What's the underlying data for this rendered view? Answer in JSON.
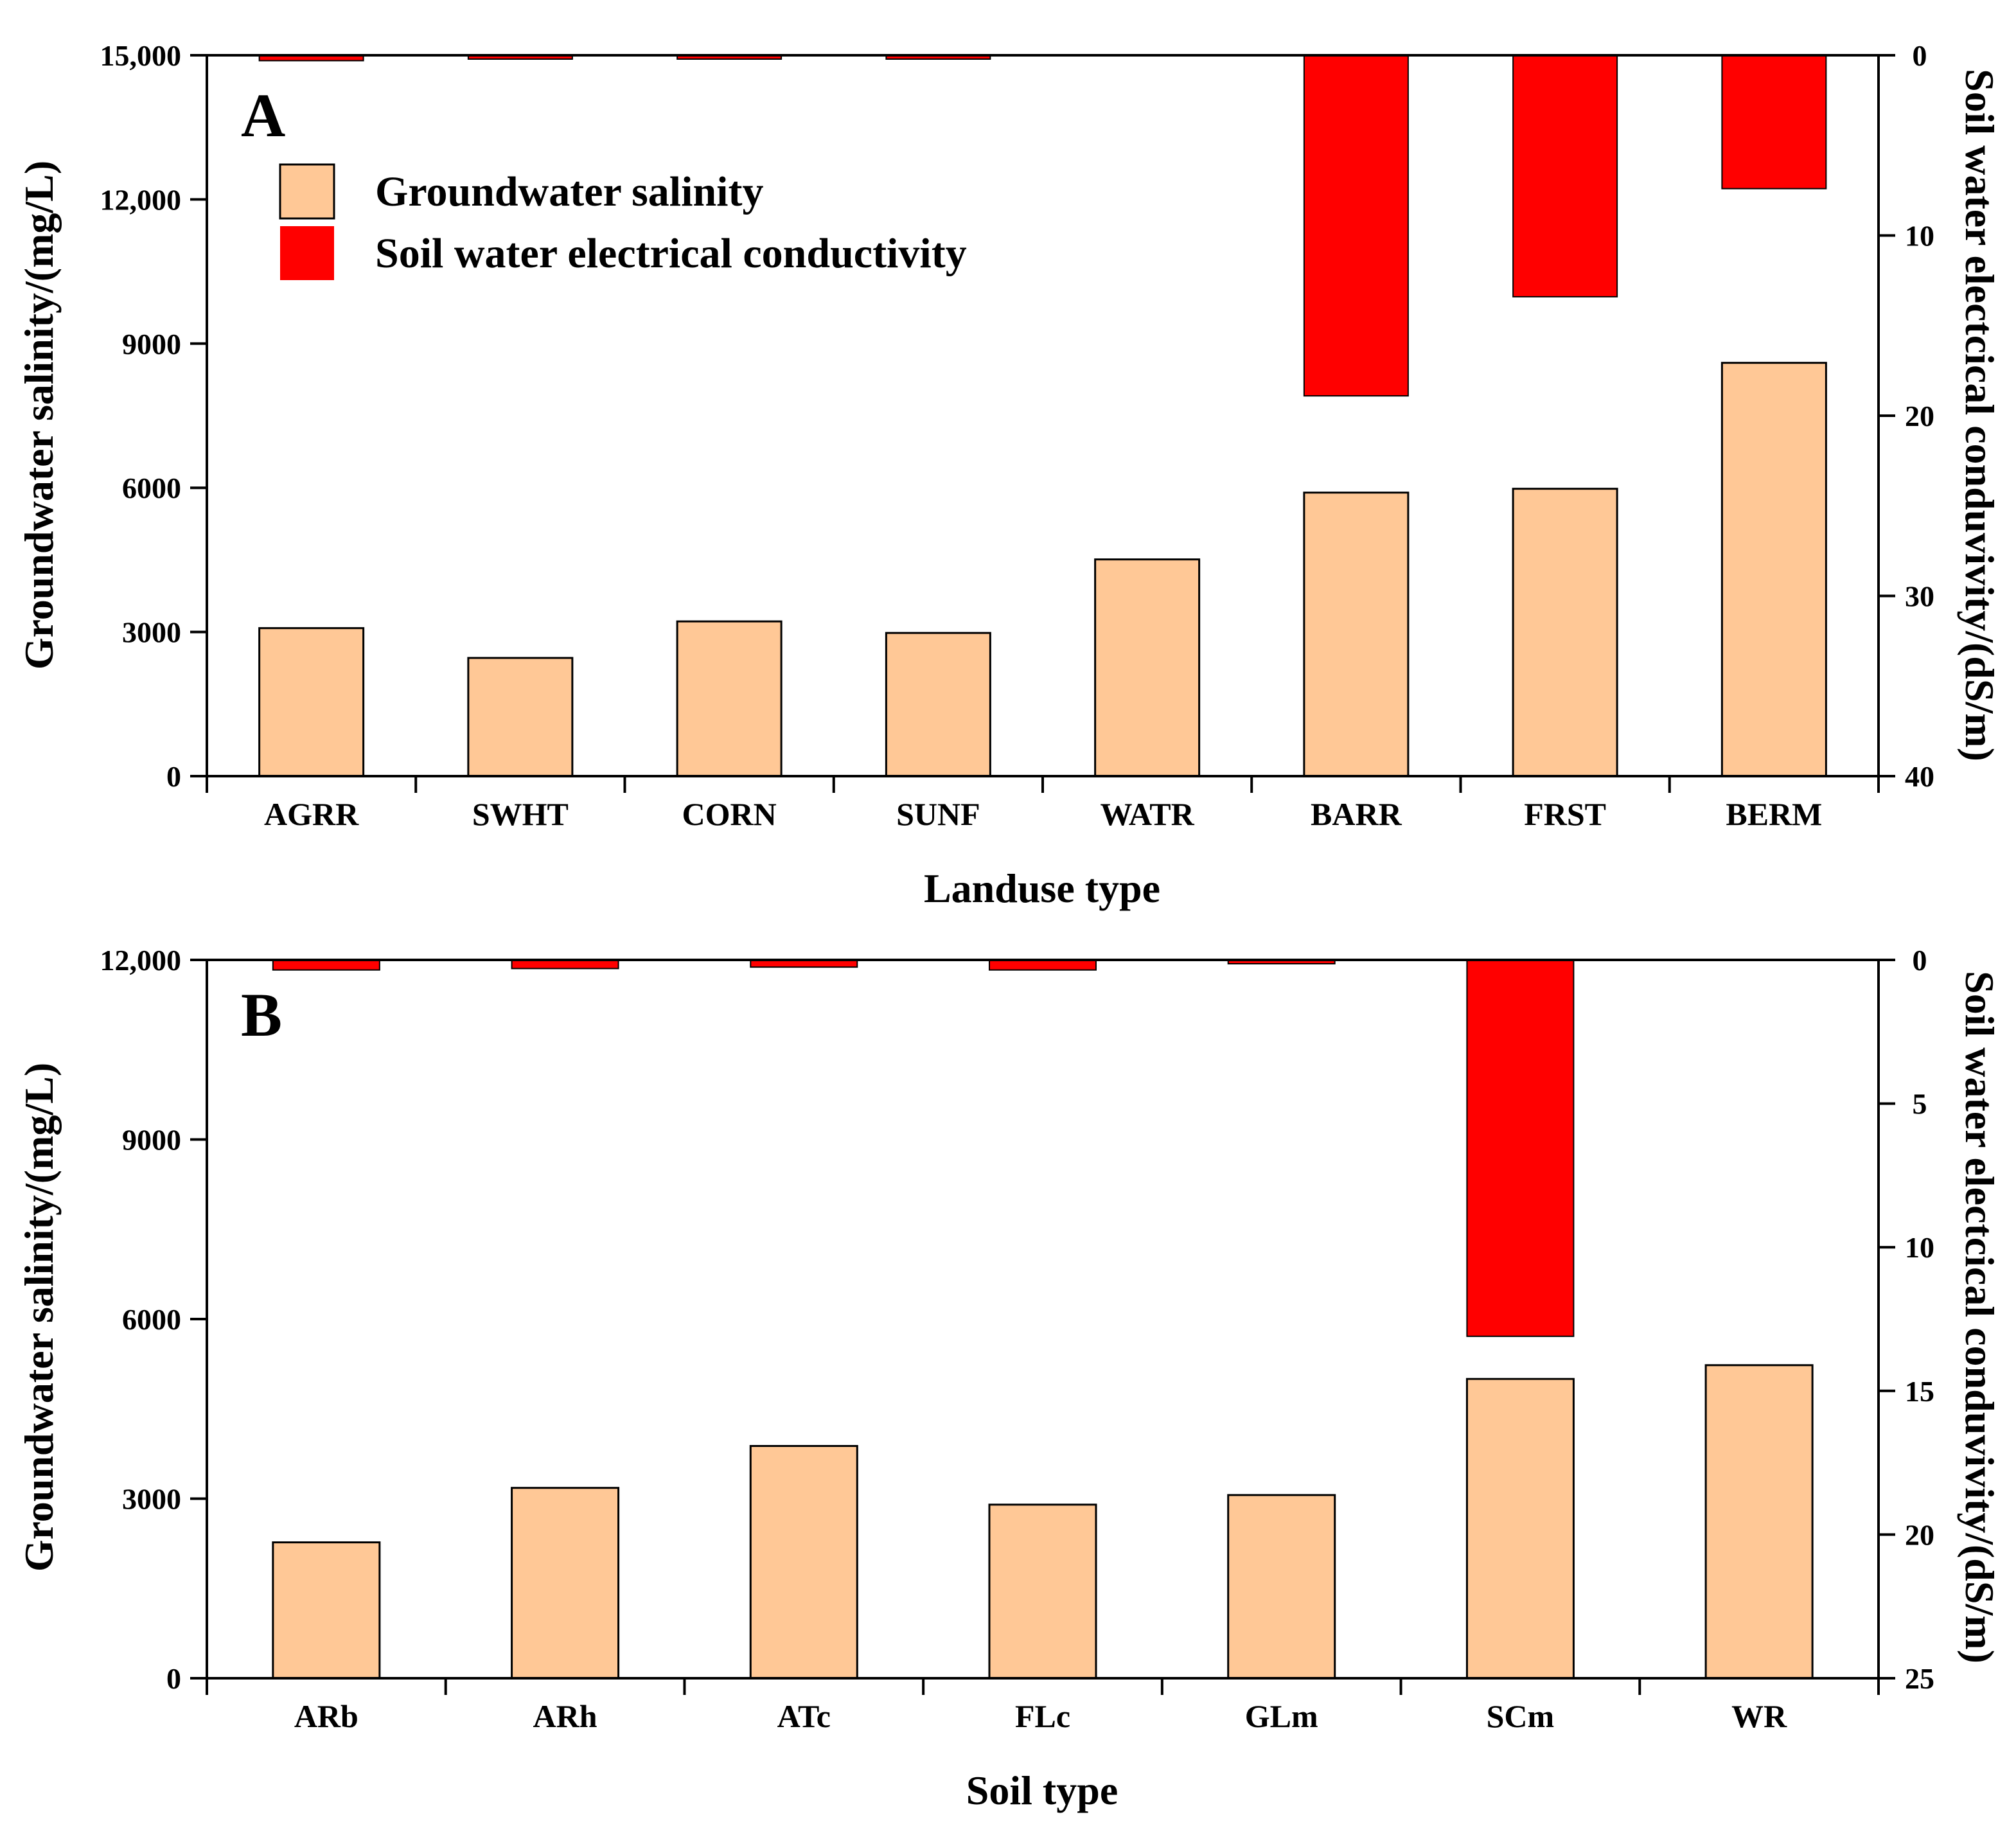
{
  "colors": {
    "groundwater": "#FFC896",
    "soil_ec": "#FF0000",
    "axis": "#000000",
    "background": "#FFFFFF"
  },
  "legend": {
    "groundwater_label": "Groundwater salinity",
    "soil_ec_label": "Soil water electrical conductivity"
  },
  "chart_data": [
    {
      "panel_label": "A",
      "type": "bar",
      "categories": [
        "AGRR",
        "SWHT",
        "CORN",
        "SUNF",
        "WATR",
        "BARR",
        "FRST",
        "BERM"
      ],
      "xlabel": "Landuse type",
      "ylabel": "Groundwater salinity/(mg/L)",
      "y2label": "Soil water electcical conduvivity/(dS/m)",
      "ylim": [
        0,
        15000
      ],
      "yticks": [
        0,
        3000,
        6000,
        9000,
        12000,
        15000
      ],
      "ytick_labels": [
        "0",
        "3000",
        "6000",
        "9000",
        "12,000",
        "15,000"
      ],
      "y2lim": [
        0,
        40
      ],
      "y2_inverted": true,
      "y2ticks": [
        0,
        10,
        20,
        30,
        40
      ],
      "y2tick_labels": [
        "0",
        "10",
        "20",
        "30",
        "40"
      ],
      "series": [
        {
          "name": "Groundwater salinity",
          "axis": "left",
          "values": [
            3080,
            2460,
            3220,
            2980,
            4510,
            5900,
            5980,
            8600
          ]
        },
        {
          "name": "Soil water electrical conductivity",
          "axis": "right",
          "values": [
            0.3,
            0.2,
            0.2,
            0.2,
            0,
            18.9,
            13.4,
            7.4
          ]
        }
      ]
    },
    {
      "panel_label": "B",
      "type": "bar",
      "categories": [
        "ARb",
        "ARh",
        "ATc",
        "FLc",
        "GLm",
        "SCm",
        "WR"
      ],
      "xlabel": "Soil type",
      "ylabel": "Groundwater salinity/(mg/L)",
      "y2label": "Soil water electcical conduvivity/(dS/m)",
      "ylim": [
        0,
        12000
      ],
      "yticks": [
        0,
        3000,
        6000,
        9000,
        12000
      ],
      "ytick_labels": [
        "0",
        "3000",
        "6000",
        "9000",
        "12,000"
      ],
      "y2lim": [
        0,
        25
      ],
      "y2_inverted": true,
      "y2ticks": [
        0,
        5,
        10,
        15,
        20,
        25
      ],
      "y2tick_labels": [
        "0",
        "5",
        "10",
        "15",
        "20",
        "25"
      ],
      "series": [
        {
          "name": "Groundwater salinity",
          "axis": "left",
          "values": [
            2270,
            3180,
            3880,
            2900,
            3060,
            5000,
            5230
          ]
        },
        {
          "name": "Soil water electrical conductivity",
          "axis": "right",
          "values": [
            0.35,
            0.3,
            0.25,
            0.35,
            0.1,
            13.1,
            0
          ]
        }
      ]
    }
  ]
}
